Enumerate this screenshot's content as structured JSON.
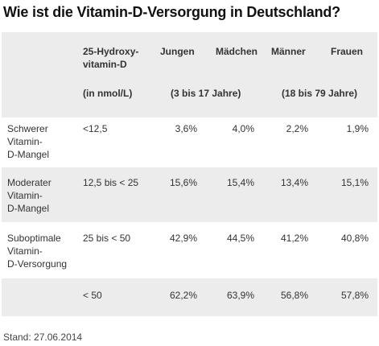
{
  "title": "Wie ist die Vitamin-D-Versorgung in Deutschland?",
  "header": {
    "col_marker": "25-Hydroxy-\nvitamin-D",
    "jungen": "Jungen",
    "maedchen": "Mädchen",
    "maenner": "Männer",
    "frauen": "Frauen"
  },
  "subheader": {
    "unit": "(in nmol/L)",
    "children_age": "(3 bis 17 Jahre)",
    "adult_age": "(18 bis 79 Jahre)"
  },
  "rows": [
    {
      "category": "Schwerer\nVitamin-\nD-Mangel",
      "range": "<12,5",
      "jungen": "3,6%",
      "maedchen": "4,0%",
      "maenner": "2,2%",
      "frauen": "1,9%"
    },
    {
      "category": "Moderater\nVitamin-\nD-Mangel",
      "range": "12,5 bis < 25",
      "jungen": "15,6%",
      "maedchen": "15,4%",
      "maenner": "13,4%",
      "frauen": "15,1%"
    },
    {
      "category": "Suboptimale\nVitamin-\nD-Versorgung",
      "range": "25 bis < 50",
      "jungen": "42,9%",
      "maedchen": "44,5%",
      "maenner": "41,2%",
      "frauen": "40,8%"
    },
    {
      "category": "",
      "range": "< 50",
      "jungen": "62,2%",
      "maedchen": "63,9%",
      "maenner": "56,8%",
      "frauen": "57,8%"
    }
  ],
  "footer": "Stand: 27.06.2014"
}
